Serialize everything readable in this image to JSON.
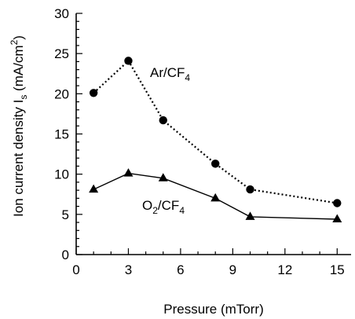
{
  "chart_data": {
    "type": "line",
    "xlabel": "Pressure (mTorr)",
    "ylabel": {
      "main": "Ion current density I",
      "sub": "s",
      "unit_pre": " (mA/cm",
      "unit_sup": "2",
      "unit_post": ")"
    },
    "xlim": [
      0,
      15.8
    ],
    "ylim": [
      0,
      30
    ],
    "xticks": [
      0,
      3,
      6,
      9,
      12,
      15
    ],
    "yticks": [
      0,
      5,
      10,
      15,
      20,
      25,
      30
    ],
    "grid": false,
    "series": [
      {
        "name": "Ar/CF4",
        "label_parts": {
          "base": "Ar/CF",
          "sub": "4",
          "post": ""
        },
        "marker": "circle",
        "line_style": "dotted",
        "x": [
          1,
          3,
          5,
          8,
          10,
          15
        ],
        "y": [
          20.1,
          24.1,
          16.7,
          11.3,
          8.1,
          6.4
        ]
      },
      {
        "name": "O2/CF4",
        "label_parts": {
          "base": "O",
          "sub": "2",
          "post": "/CF",
          "sub2": "4"
        },
        "marker": "triangle",
        "line_style": "solid",
        "x": [
          1,
          3,
          5,
          8,
          10,
          15
        ],
        "y": [
          8.1,
          10.1,
          9.5,
          7.0,
          4.7,
          4.4
        ]
      }
    ]
  }
}
